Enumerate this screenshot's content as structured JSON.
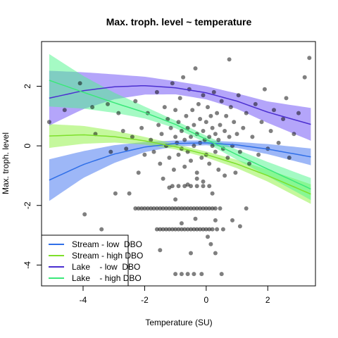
{
  "chart_data": {
    "type": "scatter",
    "title": "Max. troph. level ~ temperature",
    "xlabel": "Temperature (SU)",
    "ylabel": "Max. troph. level",
    "xlim": [
      -5.35,
      3.55
    ],
    "ylim": [
      -4.7,
      3.5
    ],
    "x_ticks": [
      -4,
      -2,
      0,
      2
    ],
    "y_ticks": [
      -4,
      -2,
      0,
      2
    ],
    "grid": false,
    "legend_position": "bottom-left",
    "points_color": "#000000",
    "points_opacity": 0.5,
    "points": [
      [
        -5.1,
        0.8
      ],
      [
        -4.6,
        1.2
      ],
      [
        -4.1,
        2.1
      ],
      [
        -3.95,
        -2.3
      ],
      [
        -3.7,
        1.3
      ],
      [
        -3.6,
        0.4
      ],
      [
        -3.4,
        -2.8
      ],
      [
        -3.2,
        1.4
      ],
      [
        -3.1,
        -0.2
      ],
      [
        -2.95,
        -1.6
      ],
      [
        -2.85,
        1.1
      ],
      [
        -2.7,
        0.5
      ],
      [
        -2.6,
        -0.1
      ],
      [
        -2.5,
        -1.6
      ],
      [
        -2.4,
        0.3
      ],
      [
        -2.3,
        1.5
      ],
      [
        -2.2,
        -0.9
      ],
      [
        -2.1,
        0.6
      ],
      [
        -2.0,
        -0.3
      ],
      [
        -1.9,
        1.1
      ],
      [
        -1.8,
        0.2
      ],
      [
        -1.7,
        -0.2
      ],
      [
        -1.6,
        1.8
      ],
      [
        -1.55,
        0.7
      ],
      [
        -1.5,
        -0.6
      ],
      [
        -1.45,
        0.4
      ],
      [
        -1.4,
        -1.1
      ],
      [
        -1.35,
        1.3
      ],
      [
        -1.3,
        0.0
      ],
      [
        -1.25,
        0.9
      ],
      [
        -1.2,
        -0.4
      ],
      [
        -1.15,
        0.6
      ],
      [
        -1.1,
        2.1
      ],
      [
        -1.05,
        -0.8
      ],
      [
        -1.0,
        0.3
      ],
      [
        -1.0,
        1.2
      ],
      [
        -0.95,
        0.1
      ],
      [
        -0.9,
        -0.3
      ],
      [
        -0.9,
        0.8
      ],
      [
        -0.85,
        1.6
      ],
      [
        -0.8,
        -0.1
      ],
      [
        -0.8,
        0.5
      ],
      [
        -0.75,
        2.3
      ],
      [
        -0.7,
        -0.7
      ],
      [
        -0.7,
        0.2
      ],
      [
        -0.65,
        1.0
      ],
      [
        -0.6,
        -0.2
      ],
      [
        -0.6,
        0.6
      ],
      [
        -0.55,
        1.9
      ],
      [
        -0.5,
        -0.5
      ],
      [
        -0.5,
        0.3
      ],
      [
        -0.45,
        1.2
      ],
      [
        -0.4,
        0.0
      ],
      [
        -0.4,
        0.7
      ],
      [
        -0.35,
        2.6
      ],
      [
        -0.3,
        -0.9
      ],
      [
        -0.3,
        0.4
      ],
      [
        -0.25,
        1.4
      ],
      [
        -0.2,
        0.1
      ],
      [
        -0.2,
        0.9
      ],
      [
        -0.15,
        -0.4
      ],
      [
        -0.1,
        0.5
      ],
      [
        -0.1,
        1.7
      ],
      [
        -0.05,
        0.2
      ],
      [
        0.0,
        -0.3
      ],
      [
        0.0,
        0.8
      ],
      [
        0.05,
        1.3
      ],
      [
        0.1,
        0.3
      ],
      [
        0.1,
        -0.6
      ],
      [
        0.15,
        1.0
      ],
      [
        0.2,
        0.0
      ],
      [
        0.2,
        0.6
      ],
      [
        0.25,
        1.8
      ],
      [
        0.3,
        -0.2
      ],
      [
        0.3,
        0.4
      ],
      [
        0.35,
        1.1
      ],
      [
        0.4,
        -0.8
      ],
      [
        0.4,
        0.2
      ],
      [
        0.45,
        0.7
      ],
      [
        0.5,
        1.5
      ],
      [
        0.55,
        -0.1
      ],
      [
        0.6,
        0.5
      ],
      [
        0.65,
        1.0
      ],
      [
        0.7,
        -0.4
      ],
      [
        0.75,
        0.3
      ],
      [
        0.8,
        1.3
      ],
      [
        0.85,
        0.0
      ],
      [
        0.9,
        0.8
      ],
      [
        0.95,
        -0.9
      ],
      [
        1.0,
        0.4
      ],
      [
        1.05,
        1.7
      ],
      [
        1.1,
        -0.2
      ],
      [
        1.2,
        0.6
      ],
      [
        1.3,
        1.1
      ],
      [
        1.4,
        -0.6
      ],
      [
        1.5,
        0.3
      ],
      [
        1.6,
        1.4
      ],
      [
        1.7,
        -0.3
      ],
      [
        1.8,
        0.8
      ],
      [
        1.9,
        1.9
      ],
      [
        2.0,
        -0.1
      ],
      [
        2.1,
        0.5
      ],
      [
        2.2,
        1.2
      ],
      [
        2.35,
        0.1
      ],
      [
        2.5,
        0.9
      ],
      [
        2.6,
        1.6
      ],
      [
        2.7,
        -0.4
      ],
      [
        2.85,
        0.4
      ],
      [
        3.0,
        1.1
      ],
      [
        3.2,
        2.3
      ],
      [
        3.35,
        2.95
      ],
      [
        0.75,
        2.9
      ],
      [
        1.1,
        -2.7
      ],
      [
        0.85,
        -2.5
      ],
      [
        0.05,
        -3.05
      ],
      [
        0.15,
        -3.3
      ],
      [
        0.3,
        -2.5
      ],
      [
        -0.8,
        -2.6
      ],
      [
        -1.5,
        -3.5
      ],
      [
        -0.5,
        -3.6
      ],
      [
        0.3,
        -3.6
      ],
      [
        -0.3,
        -1.1
      ],
      [
        -0.6,
        -1.3
      ],
      [
        0.2,
        -1.6
      ],
      [
        -1.0,
        -1.8
      ],
      [
        -0.1,
        -1.2
      ],
      [
        0.6,
        -1.0
      ],
      [
        -1.2,
        -1.4
      ],
      [
        1.3,
        -2.1
      ],
      [
        -2.3,
        -2.1
      ],
      [
        -2.2,
        -2.1
      ],
      [
        -2.1,
        -2.1
      ],
      [
        -2.0,
        -2.1
      ],
      [
        -1.9,
        -2.1
      ],
      [
        -1.8,
        -2.1
      ],
      [
        -1.7,
        -2.1
      ],
      [
        -1.6,
        -2.1
      ],
      [
        -1.5,
        -2.1
      ],
      [
        -1.4,
        -2.1
      ],
      [
        -1.3,
        -2.1
      ],
      [
        -1.2,
        -2.1
      ],
      [
        -1.1,
        -2.1
      ],
      [
        -1.0,
        -2.1
      ],
      [
        -0.9,
        -2.1
      ],
      [
        -0.8,
        -2.1
      ],
      [
        -0.7,
        -2.1
      ],
      [
        -0.6,
        -2.1
      ],
      [
        -0.5,
        -2.1
      ],
      [
        -0.4,
        -2.1
      ],
      [
        -0.3,
        -2.1
      ],
      [
        -0.2,
        -2.1
      ],
      [
        -0.1,
        -2.1
      ],
      [
        0.0,
        -2.1
      ],
      [
        0.1,
        -2.1
      ],
      [
        0.2,
        -2.1
      ],
      [
        0.3,
        -2.1
      ],
      [
        -1.6,
        -2.8
      ],
      [
        -1.5,
        -2.8
      ],
      [
        -1.4,
        -2.8
      ],
      [
        -1.3,
        -2.8
      ],
      [
        -1.2,
        -2.8
      ],
      [
        -1.1,
        -2.8
      ],
      [
        -1.0,
        -2.8
      ],
      [
        -0.9,
        -2.8
      ],
      [
        -0.8,
        -2.8
      ],
      [
        -0.7,
        -2.8
      ],
      [
        -0.6,
        -2.8
      ],
      [
        -0.5,
        -2.8
      ],
      [
        -0.4,
        -2.8
      ],
      [
        -0.3,
        -2.8
      ],
      [
        -0.2,
        -2.8
      ],
      [
        -0.1,
        -2.8
      ],
      [
        0.0,
        -2.8
      ],
      [
        0.1,
        -2.8
      ],
      [
        0.2,
        -2.8
      ],
      [
        0.35,
        -2.8
      ],
      [
        -1.1,
        -1.35
      ],
      [
        -0.9,
        -1.35
      ],
      [
        -0.7,
        -1.35
      ],
      [
        -0.5,
        -1.35
      ],
      [
        -0.3,
        -1.35
      ],
      [
        -0.1,
        -1.35
      ],
      [
        0.1,
        -1.35
      ],
      [
        -1.0,
        -4.3
      ],
      [
        -0.8,
        -4.3
      ],
      [
        -0.6,
        -4.3
      ],
      [
        -0.4,
        -4.3
      ],
      [
        0.5,
        -4.3
      ],
      [
        -0.15,
        -4.3
      ],
      [
        -0.35,
        -2.45
      ],
      [
        0.45,
        -2.1
      ],
      [
        0.55,
        -2.8
      ]
    ],
    "series": [
      {
        "name": "Stream - low  DBO",
        "color": "#2f6fe8",
        "band_color": "#3b6ff0",
        "x_range": [
          -5.1,
          3.4
        ],
        "y_at_x": [
          [
            -5.1,
            -1.15
          ],
          [
            -4.0,
            -0.63
          ],
          [
            -3.0,
            -0.28
          ],
          [
            -2.0,
            -0.04
          ],
          [
            -1.0,
            0.08
          ],
          [
            0.0,
            0.1
          ],
          [
            1.0,
            0.03
          ],
          [
            2.0,
            -0.11
          ],
          [
            3.4,
            -0.37
          ]
        ],
        "band_halfwidth": [
          [
            -5.1,
            0.7
          ],
          [
            -4.0,
            0.45
          ],
          [
            -3.0,
            0.3
          ],
          [
            -2.0,
            0.17
          ],
          [
            -1.0,
            0.1
          ],
          [
            0.0,
            0.08
          ],
          [
            1.0,
            0.1
          ],
          [
            2.0,
            0.17
          ],
          [
            3.4,
            0.28
          ]
        ]
      },
      {
        "name": "Stream - high DBO",
        "color": "#7ee02b",
        "band_color": "#8cf23c",
        "x_range": [
          -5.1,
          3.4
        ],
        "y_at_x": [
          [
            -5.1,
            0.33
          ],
          [
            -4.0,
            0.37
          ],
          [
            -3.0,
            0.31
          ],
          [
            -2.0,
            0.17
          ],
          [
            -1.0,
            -0.03
          ],
          [
            0.0,
            -0.29
          ],
          [
            1.0,
            -0.61
          ],
          [
            2.0,
            -1.0
          ],
          [
            3.4,
            -1.62
          ]
        ],
        "band_halfwidth": [
          [
            -5.1,
            0.4
          ],
          [
            -4.0,
            0.3
          ],
          [
            -3.0,
            0.2
          ],
          [
            -2.0,
            0.13
          ],
          [
            -1.0,
            0.09
          ],
          [
            0.0,
            0.1
          ],
          [
            1.0,
            0.14
          ],
          [
            2.0,
            0.2
          ],
          [
            3.4,
            0.33
          ]
        ]
      },
      {
        "name": "Lake    - low  DBO",
        "color": "#4b2fd0",
        "band_color": "#6a4cf5",
        "x_range": [
          -5.1,
          3.4
        ],
        "y_at_x": [
          [
            -5.1,
            1.6
          ],
          [
            -4.0,
            1.85
          ],
          [
            -3.0,
            1.98
          ],
          [
            -2.0,
            2.02
          ],
          [
            -1.0,
            1.95
          ],
          [
            0.0,
            1.78
          ],
          [
            1.0,
            1.5
          ],
          [
            2.0,
            1.13
          ],
          [
            3.4,
            0.72
          ]
        ],
        "band_halfwidth": [
          [
            -5.1,
            0.92
          ],
          [
            -4.0,
            0.62
          ],
          [
            -3.0,
            0.42
          ],
          [
            -2.0,
            0.3
          ],
          [
            -1.0,
            0.22
          ],
          [
            0.0,
            0.22
          ],
          [
            1.0,
            0.26
          ],
          [
            2.0,
            0.36
          ],
          [
            3.4,
            0.55
          ]
        ]
      },
      {
        "name": "Lake    - high DBO",
        "color": "#3be87a",
        "band_color": "#4cf58a",
        "x_range": [
          -5.1,
          3.4
        ],
        "y_at_x": [
          [
            -5.1,
            2.2
          ],
          [
            -4.0,
            1.8
          ],
          [
            -3.0,
            1.45
          ],
          [
            -2.0,
            1.12
          ],
          [
            -1.0,
            0.72
          ],
          [
            0.0,
            0.22
          ],
          [
            1.0,
            -0.3
          ],
          [
            2.0,
            -0.78
          ],
          [
            3.4,
            -1.45
          ]
        ],
        "band_halfwidth": [
          [
            -5.1,
            0.88
          ],
          [
            -4.0,
            0.55
          ],
          [
            -3.0,
            0.34
          ],
          [
            -2.0,
            0.2
          ],
          [
            -1.0,
            0.13
          ],
          [
            0.0,
            0.12
          ],
          [
            1.0,
            0.17
          ],
          [
            2.0,
            0.24
          ],
          [
            3.4,
            0.37
          ]
        ]
      }
    ]
  }
}
